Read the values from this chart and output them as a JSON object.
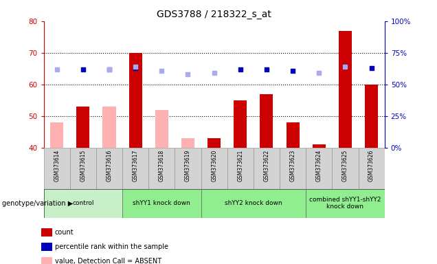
{
  "title": "GDS3788 / 218322_s_at",
  "samples": [
    "GSM373614",
    "GSM373615",
    "GSM373616",
    "GSM373617",
    "GSM373618",
    "GSM373619",
    "GSM373620",
    "GSM373621",
    "GSM373622",
    "GSM373623",
    "GSM373624",
    "GSM373625",
    "GSM373626"
  ],
  "count_values": [
    null,
    53,
    null,
    70,
    null,
    null,
    43,
    55,
    57,
    48,
    41,
    77,
    60
  ],
  "absent_value": [
    48,
    null,
    53,
    null,
    52,
    43,
    null,
    null,
    null,
    null,
    null,
    null,
    null
  ],
  "percentile_rank": [
    null,
    62,
    62,
    63,
    null,
    null,
    null,
    62,
    62,
    61,
    null,
    64,
    63
  ],
  "absent_rank": [
    62,
    null,
    62,
    64,
    61,
    58,
    59,
    null,
    null,
    null,
    59,
    64,
    null
  ],
  "ylim_left": [
    40,
    80
  ],
  "ylim_right": [
    0,
    100
  ],
  "yticks_left": [
    40,
    50,
    60,
    70,
    80
  ],
  "yticks_right": [
    0,
    25,
    50,
    75,
    100
  ],
  "groups": [
    {
      "label": "control",
      "start": 0,
      "end": 2,
      "color": "#c8f0c8"
    },
    {
      "label": "shYY1 knock down",
      "start": 3,
      "end": 5,
      "color": "#90ee90"
    },
    {
      "label": "shYY2 knock down",
      "start": 6,
      "end": 9,
      "color": "#90ee90"
    },
    {
      "label": "combined shYY1-shYY2\nknock down",
      "start": 10,
      "end": 12,
      "color": "#90ee90"
    }
  ],
  "bar_color_count": "#cc0000",
  "bar_color_absent": "#ffb0b0",
  "dot_color_rank": "#0000bb",
  "dot_color_absent_rank": "#aaaaee",
  "bg_color": "#ffffff",
  "left_axis_color": "#cc0000",
  "right_axis_color": "#0000bb",
  "title_fontsize": 10,
  "genotype_label": "genotype/variation"
}
